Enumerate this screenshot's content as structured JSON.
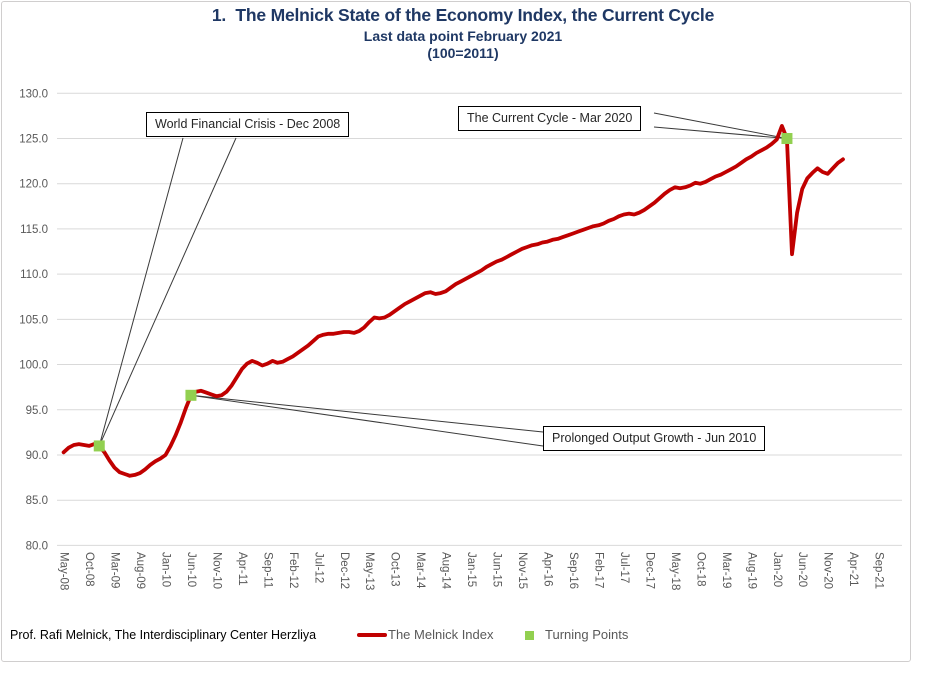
{
  "title": "1.  The Melnick State of the Economy Index, the Current Cycle",
  "subtitle1": "Last data point February 2021",
  "subtitle2": "(100=2011)",
  "footer_credit": "Prof. Rafi Melnick, The Interdisciplinary Center Herzliya",
  "legend": {
    "series_label": "The Melnick Index",
    "turning_label": "Turning Points"
  },
  "annotations": [
    {
      "id": "wfc",
      "text": "World Financial Crisis - Dec 2008",
      "target_month_index": 7
    },
    {
      "id": "cc",
      "text": "The Current Cycle - Mar 2020",
      "target_month_index": 142
    },
    {
      "id": "po",
      "text": "Prolonged Output Growth - Jun 2010",
      "target_month_index": 25
    }
  ],
  "colors": {
    "line": "#C00000",
    "turning_point": "#92D050",
    "title": "#1F3864",
    "axis_text": "#595959",
    "gridline": "#D9D9D9",
    "leader_line": "#3a3a3a"
  },
  "chart_data": {
    "type": "line",
    "title": "1. The Melnick State of the Economy Index, the Current Cycle",
    "subtitle": "Last data point February 2021 (100=2011)",
    "frequency": "monthly",
    "start": "May-08",
    "end": "Feb-21",
    "ylim": [
      80.0,
      130.0
    ],
    "ytick_step": 5.0,
    "grid": "horizontal",
    "legend_position": "bottom",
    "y_tick_labels": [
      "130.0",
      "125.0",
      "120.0",
      "115.0",
      "110.0",
      "105.0",
      "100.0",
      "95.0",
      "90.0",
      "85.0",
      "80.0"
    ],
    "x_tick_labels": [
      "May-08",
      "Oct-08",
      "Mar-09",
      "Aug-09",
      "Jan-10",
      "Jun-10",
      "Nov-10",
      "Apr-11",
      "Sep-11",
      "Feb-12",
      "Jul-12",
      "Dec-12",
      "May-13",
      "Oct-13",
      "Mar-14",
      "Aug-14",
      "Jan-15",
      "Jun-15",
      "Nov-15",
      "Apr-16",
      "Sep-16",
      "Feb-17",
      "Jul-17",
      "Dec-17",
      "May-18",
      "Oct-18",
      "Mar-19",
      "Aug-19",
      "Jan-20",
      "Jun-20",
      "Nov-20",
      "Apr-21",
      "Sep-21"
    ],
    "x_tick_month_step": 5,
    "series": [
      {
        "name": "The Melnick Index",
        "color": "#C00000",
        "values": [
          90.3,
          90.8,
          91.1,
          91.2,
          91.1,
          91.0,
          91.2,
          91.0,
          90.3,
          89.4,
          88.6,
          88.1,
          87.9,
          87.7,
          87.8,
          88.0,
          88.4,
          88.9,
          89.3,
          89.6,
          90.0,
          91.0,
          92.2,
          93.6,
          95.2,
          96.6,
          97.0,
          97.1,
          96.9,
          96.7,
          96.5,
          96.6,
          97.0,
          97.7,
          98.6,
          99.5,
          100.1,
          100.4,
          100.2,
          99.9,
          100.1,
          100.4,
          100.2,
          100.3,
          100.6,
          100.9,
          101.3,
          101.7,
          102.1,
          102.6,
          103.1,
          103.3,
          103.4,
          103.4,
          103.5,
          103.6,
          103.6,
          103.5,
          103.7,
          104.1,
          104.7,
          105.2,
          105.1,
          105.2,
          105.5,
          105.9,
          106.3,
          106.7,
          107.0,
          107.3,
          107.6,
          107.9,
          108.0,
          107.8,
          107.9,
          108.1,
          108.5,
          108.9,
          109.2,
          109.5,
          109.8,
          110.1,
          110.4,
          110.8,
          111.1,
          111.4,
          111.6,
          111.9,
          112.2,
          112.5,
          112.8,
          113.0,
          113.2,
          113.3,
          113.5,
          113.6,
          113.8,
          113.9,
          114.1,
          114.3,
          114.5,
          114.7,
          114.9,
          115.1,
          115.3,
          115.4,
          115.6,
          115.9,
          116.1,
          116.4,
          116.6,
          116.7,
          116.6,
          116.8,
          117.1,
          117.5,
          117.9,
          118.4,
          118.9,
          119.3,
          119.6,
          119.5,
          119.6,
          119.8,
          120.1,
          120.0,
          120.2,
          120.5,
          120.8,
          121.0,
          121.3,
          121.6,
          121.9,
          122.3,
          122.7,
          123.0,
          123.4,
          123.7,
          124.0,
          124.4,
          124.9,
          126.4,
          125.0,
          112.2,
          116.8,
          119.4,
          120.6,
          121.2,
          121.7,
          121.3,
          121.1,
          121.7,
          122.3,
          122.7
        ]
      }
    ],
    "turning_points": [
      {
        "label": "Dec 2008",
        "month": "Dec-08",
        "month_index": 7,
        "value": 91.0
      },
      {
        "label": "Jun 2010",
        "month": "Jun-10",
        "month_index": 25,
        "value": 96.6
      },
      {
        "label": "Mar 2020",
        "month": "Mar-20",
        "month_index": 142,
        "value": 125.0
      }
    ]
  }
}
